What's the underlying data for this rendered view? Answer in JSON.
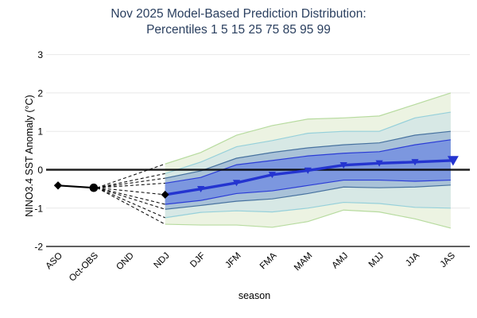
{
  "title": {
    "line1": "Nov 2025 Model-Based Prediction Distribution:",
    "line2": "Percentiles 1 5 15 25 75 85 95 99"
  },
  "chart_data": {
    "type": "area",
    "subtype": "percentile-fan-forecast",
    "title": "Nov 2025 Model-Based Prediction Distribution: Percentiles 1 5 15 25 75 85 95 99",
    "xlabel": "season",
    "ylabel": "NINO3.4 SST Anomaly (°C)",
    "ylim": [
      -2,
      3
    ],
    "yticks": [
      3,
      2,
      1,
      0,
      -1,
      -2
    ],
    "grid": "horizontal-only",
    "legend": "none",
    "categories": [
      "ASO",
      "Oct-OBS",
      "OND",
      "NDJ",
      "DJF",
      "JFM",
      "FMA",
      "MAM",
      "AMJ",
      "MJJ",
      "JJA",
      "JAS"
    ],
    "observed": {
      "categories": [
        "ASO",
        "Oct-OBS"
      ],
      "values": [
        -0.41,
        -0.47
      ],
      "markers": [
        "diamond",
        "circle"
      ]
    },
    "forecast_start_category": "NDJ",
    "forecast_categories": [
      "NDJ",
      "DJF",
      "JFM",
      "FMA",
      "MAM",
      "AMJ",
      "MJJ",
      "JJA",
      "JAS"
    ],
    "percentiles": {
      "p1": [
        -1.42,
        -1.44,
        -1.44,
        -1.5,
        -1.35,
        -1.05,
        -1.1,
        -1.28,
        -1.52
      ],
      "p5": [
        -1.25,
        -1.11,
        -1.07,
        -1.1,
        -1.0,
        -0.85,
        -0.88,
        -0.98,
        -1.0
      ],
      "p15": [
        -1.03,
        -0.93,
        -0.82,
        -0.76,
        -0.62,
        -0.45,
        -0.47,
        -0.45,
        -0.4
      ],
      "p25": [
        -0.9,
        -0.8,
        -0.62,
        -0.55,
        -0.41,
        -0.27,
        -0.27,
        -0.3,
        -0.27
      ],
      "median": [
        -0.65,
        -0.5,
        -0.34,
        -0.13,
        -0.02,
        0.12,
        0.17,
        0.2,
        0.24
      ],
      "p75": [
        -0.35,
        -0.2,
        0.13,
        0.24,
        0.36,
        0.43,
        0.47,
        0.65,
        0.78
      ],
      "p85": [
        -0.22,
        -0.03,
        0.3,
        0.45,
        0.57,
        0.65,
        0.7,
        0.9,
        1.0
      ],
      "p95": [
        -0.1,
        0.2,
        0.6,
        0.76,
        0.95,
        1.0,
        1.0,
        1.35,
        1.5
      ],
      "p99": [
        0.15,
        0.45,
        0.9,
        1.15,
        1.32,
        1.35,
        1.4,
        1.7,
        2.0
      ]
    },
    "band_labels": [
      "1-99",
      "5-95",
      "15-85",
      "25-75"
    ],
    "colors": {
      "title": "#2a3f5f",
      "grid": "#e8e8e8",
      "zero_line": "#000000",
      "axis_line": "#000000",
      "observed": "#000000",
      "dashed_fan": "#111111",
      "median": "#2434d0",
      "band_99": "#ecf3e2",
      "band_95": "#d7e8e5",
      "band_85": "#a9c2d8",
      "band_75": "#7c97df",
      "edge_99": "#b7db9f",
      "edge_95": "#96d0da",
      "edge_85": "#47729f",
      "edge_75": "#2b3cd6"
    }
  }
}
